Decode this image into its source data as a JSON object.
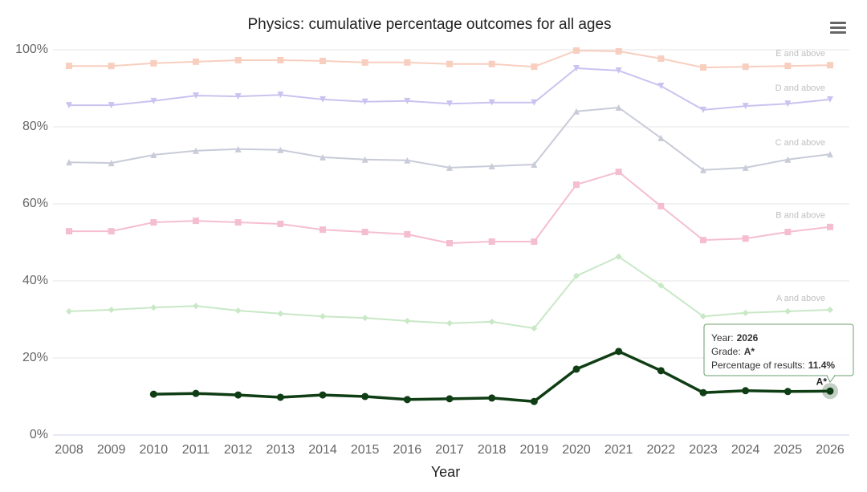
{
  "chart_data": {
    "type": "line",
    "title": "Physics: cumulative percentage outcomes for all ages",
    "x_label": "Year",
    "categories": [
      "2008",
      "2009",
      "2010",
      "2011",
      "2012",
      "2013",
      "2014",
      "2015",
      "2016",
      "2017",
      "2018",
      "2019",
      "2020",
      "2021",
      "2022",
      "2023",
      "2024",
      "2025",
      "2026"
    ],
    "ylim": [
      0,
      100
    ],
    "yticks": [
      {
        "value": 0,
        "label": "0%"
      },
      {
        "value": 20,
        "label": "20%"
      },
      {
        "value": 40,
        "label": "40%"
      },
      {
        "value": 60,
        "label": "60%"
      },
      {
        "value": 80,
        "label": "80%"
      },
      {
        "value": 100,
        "label": "100%"
      }
    ],
    "grid": true,
    "series": [
      {
        "name": "E and above",
        "color": "#f7c6b4",
        "marker": "square",
        "faded": true,
        "values": [
          95.8,
          95.8,
          96.5,
          96.9,
          97.3,
          97.3,
          97.1,
          96.7,
          96.7,
          96.3,
          96.3,
          95.6,
          99.8,
          99.6,
          97.7,
          95.4,
          95.6,
          95.8,
          96.0
        ]
      },
      {
        "name": "D and above",
        "color": "#c2b8ee",
        "marker": "triangle-down",
        "faded": true,
        "values": [
          85.6,
          85.6,
          86.7,
          88.1,
          87.9,
          88.3,
          87.1,
          86.5,
          86.7,
          86.0,
          86.3,
          86.3,
          95.2,
          94.6,
          90.6,
          84.4,
          85.4,
          86.0,
          87.1
        ]
      },
      {
        "name": "C and above",
        "color": "#bfc3d2",
        "marker": "triangle",
        "faded": true,
        "values": [
          70.8,
          70.6,
          72.7,
          73.8,
          74.2,
          74.0,
          72.1,
          71.5,
          71.3,
          69.4,
          69.8,
          70.2,
          84.0,
          85.0,
          77.1,
          68.8,
          69.4,
          71.5,
          72.9
        ]
      },
      {
        "name": "B and above",
        "color": "#f4b3c8",
        "marker": "square",
        "faded": true,
        "values": [
          52.9,
          52.9,
          55.2,
          55.6,
          55.2,
          54.8,
          53.3,
          52.7,
          52.1,
          49.8,
          50.2,
          50.2,
          65.0,
          68.3,
          59.4,
          50.6,
          51.0,
          52.7,
          54.0
        ]
      },
      {
        "name": "A and above",
        "color": "#bfe5bd",
        "marker": "diamond",
        "faded": true,
        "values": [
          32.1,
          32.5,
          33.1,
          33.5,
          32.3,
          31.5,
          30.8,
          30.4,
          29.6,
          29.0,
          29.4,
          27.7,
          41.3,
          46.3,
          38.8,
          30.8,
          31.7,
          32.1,
          32.5
        ]
      },
      {
        "name": "A*",
        "color": "#0f3d14",
        "marker": "circle",
        "faded": false,
        "values": [
          null,
          null,
          10.6,
          10.8,
          10.4,
          9.8,
          10.4,
          10.0,
          9.2,
          9.4,
          9.6,
          8.7,
          17.1,
          21.7,
          16.7,
          11.0,
          11.5,
          11.3,
          11.4
        ]
      }
    ],
    "tooltip": [
      {
        "label": "Year:",
        "value": "2026"
      },
      {
        "label": "Grade:",
        "value": "A*"
      },
      {
        "label": "Percentage of results:",
        "value": "11.4%"
      }
    ]
  }
}
